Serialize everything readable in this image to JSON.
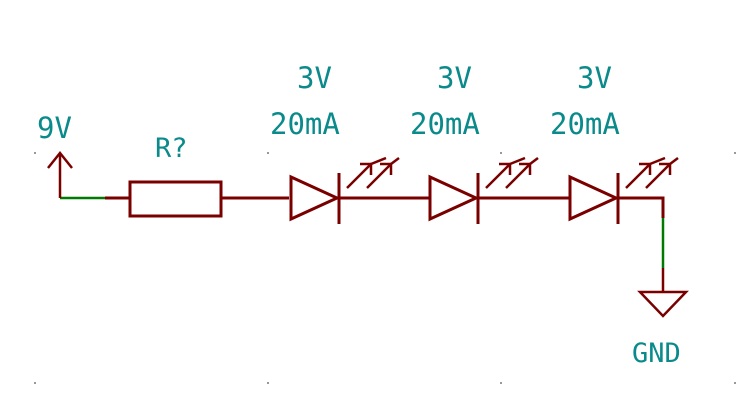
{
  "power": {
    "label": "9V"
  },
  "resistor": {
    "ref": "R?"
  },
  "leds": [
    {
      "voltage": "3V",
      "current": "20mA"
    },
    {
      "voltage": "3V",
      "current": "20mA"
    },
    {
      "voltage": "3V",
      "current": "20mA"
    }
  ],
  "ground": {
    "label": "GND"
  },
  "colors": {
    "component": "#7a0000",
    "wire": "#007a00",
    "text": "#0a8a8a",
    "grid_dot": "#999999"
  }
}
